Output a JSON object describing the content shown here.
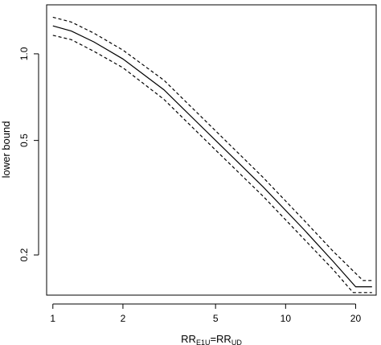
{
  "chart_data": {
    "type": "line",
    "title": "",
    "xlabel_main": "RR",
    "xlabel_sub1": "E1U",
    "xlabel_eq": "=RR",
    "xlabel_sub2": "UD",
    "ylabel": "lower bound",
    "x_scale": "log",
    "y_scale": "log",
    "xlim": [
      0.94,
      24.5
    ],
    "ylim": [
      0.145,
      1.48
    ],
    "x_ticks": [
      1,
      2,
      5,
      10,
      20
    ],
    "x_tick_labels": [
      "1",
      "2",
      "5",
      "10",
      "20"
    ],
    "y_ticks": [
      0.2,
      0.5,
      1.0
    ],
    "y_tick_labels": [
      "0.2",
      "0.5",
      "1.0"
    ],
    "grid": false,
    "legend": "none",
    "series": [
      {
        "style": "solid",
        "x": [
          1,
          1.2,
          1.5,
          2,
          3,
          5,
          8,
          12,
          16,
          20,
          21,
          23.5
        ],
        "y": [
          1.25,
          1.2,
          1.1,
          0.96,
          0.75,
          0.5,
          0.345,
          0.245,
          0.19,
          0.155,
          0.155,
          0.155
        ]
      },
      {
        "style": "dashed",
        "x": [
          1,
          1.2,
          1.5,
          2,
          3,
          5,
          8,
          12,
          16,
          21.5,
          23.5
        ],
        "y": [
          1.34,
          1.29,
          1.18,
          1.03,
          0.81,
          0.54,
          0.372,
          0.264,
          0.206,
          0.163,
          0.163
        ]
      },
      {
        "style": "dashed",
        "x": [
          1,
          1.2,
          1.5,
          2,
          3,
          5,
          8,
          12,
          16,
          19.5,
          23.5
        ],
        "y": [
          1.16,
          1.12,
          1.02,
          0.895,
          0.695,
          0.463,
          0.32,
          0.227,
          0.178,
          0.148,
          0.148
        ]
      }
    ]
  }
}
